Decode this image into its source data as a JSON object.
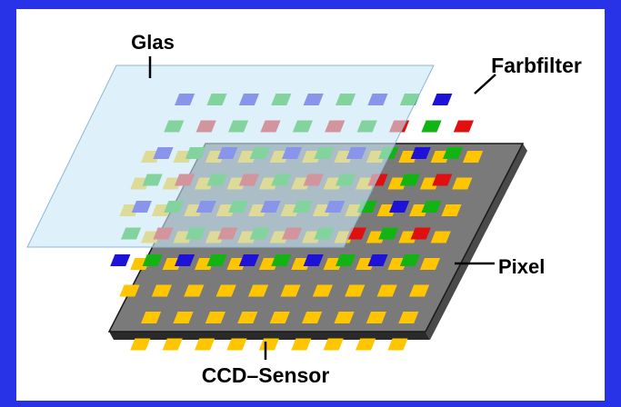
{
  "labels": {
    "glass": "Glas",
    "color_filter": "Farbfilter",
    "pixel": "Pixel",
    "sensor": "CCD–Sensor"
  },
  "colors": {
    "frame_blue": "#2832e6",
    "background": "#ffffff",
    "glass": "#c9e6f6",
    "glass_edge": "#8cb5d6",
    "sensor_plate": "#7a7a7a",
    "sensor_edge": "#1a1a1a",
    "pixel_yellow": "#ffc600",
    "filter_blue": "#1f12d8",
    "filter_green": "#12b414",
    "filter_red": "#e01010"
  },
  "filter_pattern": [
    [
      "blue",
      "green"
    ],
    [
      "green",
      "red"
    ]
  ]
}
